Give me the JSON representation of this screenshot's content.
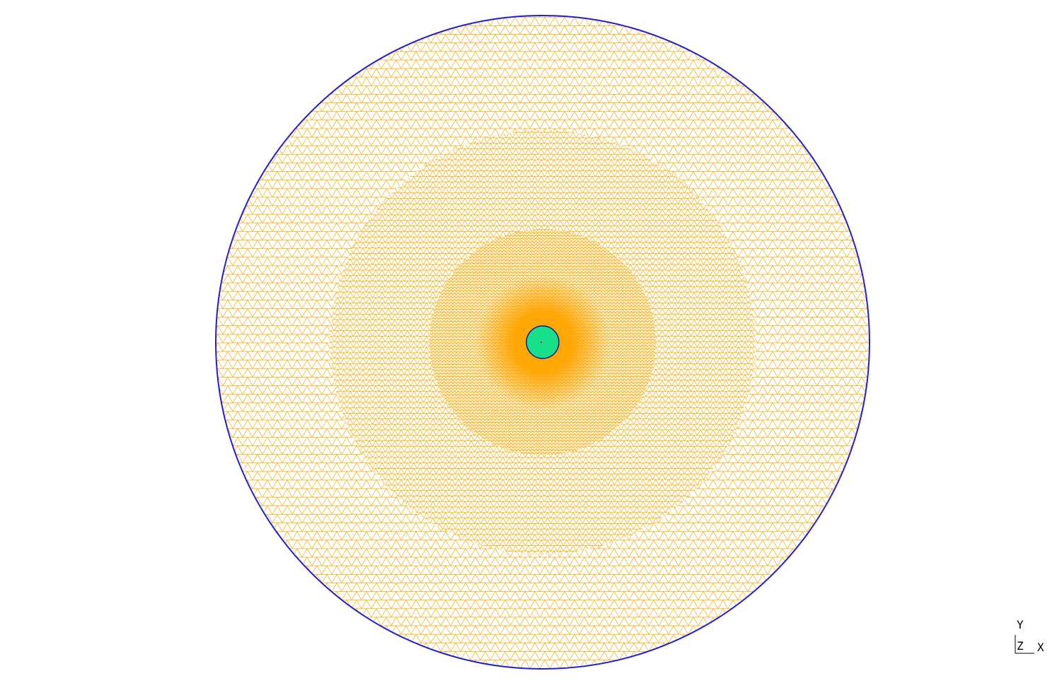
{
  "viewport": {
    "background": "#ffffff"
  },
  "mesh": {
    "element_type": "triangle",
    "mesh_color": "#f5a800",
    "dense_core_color": "#ffa500",
    "outer_boundary_color": "#1f1fd6",
    "inner_region_color": "#17e08a",
    "inner_boundary_color": "#1a1a9e",
    "center_node_color": "#cc2222"
  },
  "axis_triad": {
    "y_label": "Y",
    "z_label": "Z",
    "x_label": "X",
    "color": "#000000"
  }
}
